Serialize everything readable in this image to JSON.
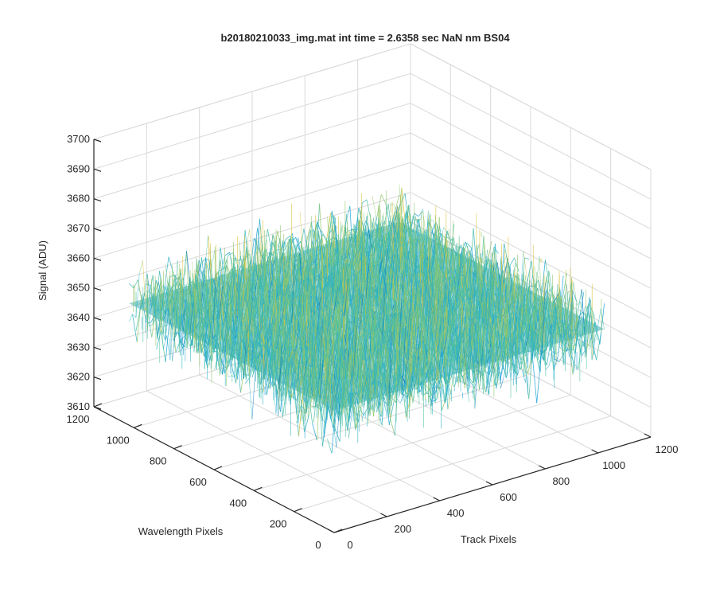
{
  "chart_data": {
    "type": "surface",
    "title": "b20180210033_img.mat int time = 2.6358 sec  NaN nm BS04",
    "xlabel": "Track Pixels",
    "ylabel": "Wavelength Pixels",
    "zlabel": "Signal (ADU)",
    "xlim": [
      0,
      1200
    ],
    "ylim": [
      0,
      1200
    ],
    "zlim": [
      3610,
      3700
    ],
    "xticks": [
      0,
      200,
      400,
      600,
      800,
      1000,
      1200
    ],
    "yticks": [
      0,
      200,
      400,
      600,
      800,
      1000,
      1200
    ],
    "zticks": [
      3610,
      3620,
      3630,
      3640,
      3650,
      3660,
      3670,
      3680,
      3690,
      3700
    ],
    "data_extent": {
      "x": [
        0,
        1024
      ],
      "y": [
        0,
        1024
      ]
    },
    "signal_mean": 3651,
    "signal_spread": 9,
    "grid": true,
    "colormap": [
      "#0072bd",
      "#1a9fd6",
      "#2fb3c4",
      "#4fbfa0",
      "#8fc469",
      "#d9c23a"
    ]
  }
}
